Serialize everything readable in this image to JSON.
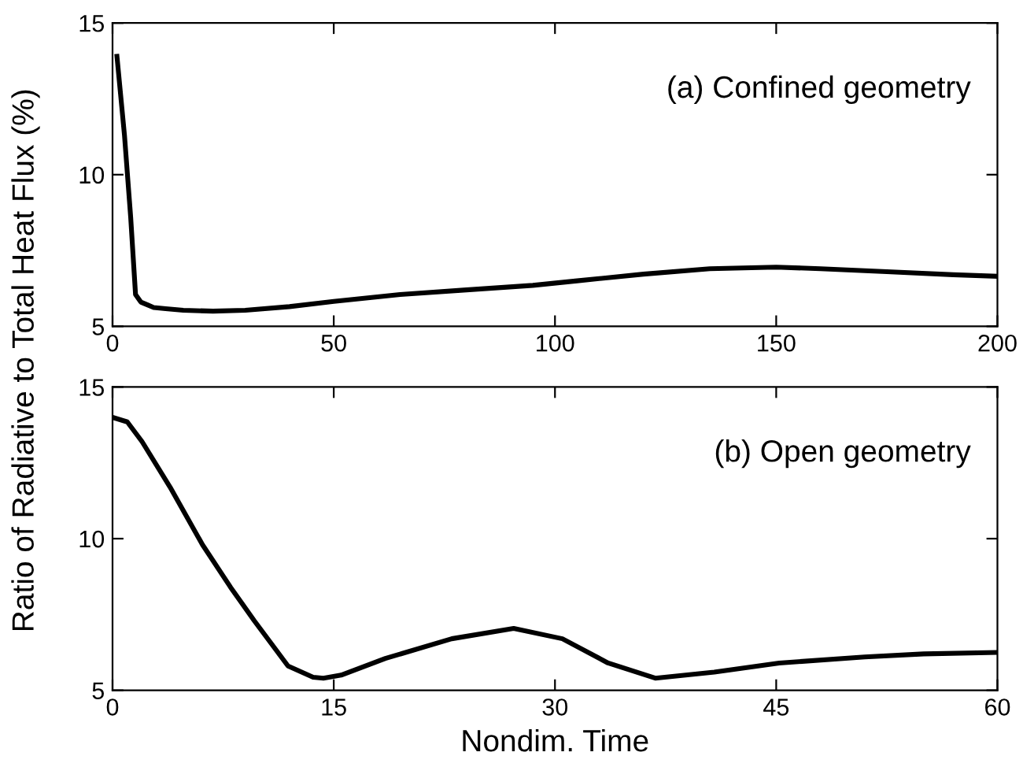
{
  "chart_data": [
    {
      "type": "line",
      "ylabel": "Ratio of Radiative to Total Heat Flux (%)",
      "annotations": [
        "(a) Confined geometry"
      ],
      "xlim": [
        0,
        200
      ],
      "ylim": [
        5,
        15
      ],
      "xticks": [
        0,
        50,
        100,
        150,
        200
      ],
      "yticks": [
        5,
        10,
        15
      ],
      "grid": false,
      "legend": false,
      "series": [
        {
          "color": "#000000",
          "x": [
            1,
            2.7,
            4.1,
            5.2,
            6.4,
            8,
            9.3,
            12,
            16,
            22.7,
            30,
            40,
            50,
            65,
            80,
            95,
            105,
            120,
            135,
            150,
            160,
            175,
            190,
            200
          ],
          "values": [
            13.9,
            11.3,
            8.6,
            6.05,
            5.8,
            5.7,
            5.62,
            5.58,
            5.53,
            5.5,
            5.53,
            5.65,
            5.82,
            6.05,
            6.2,
            6.35,
            6.5,
            6.72,
            6.9,
            6.95,
            6.9,
            6.8,
            6.7,
            6.65
          ]
        }
      ]
    },
    {
      "type": "line",
      "xlabel": "Nondim. Time",
      "annotations": [
        "(b) Open geometry"
      ],
      "xlim": [
        0,
        60
      ],
      "ylim": [
        5,
        15
      ],
      "xticks": [
        0,
        15,
        30,
        45,
        60
      ],
      "yticks": [
        5,
        10,
        15
      ],
      "grid": false,
      "legend": false,
      "series": [
        {
          "color": "#000000",
          "x": [
            0,
            1,
            2,
            3.9,
            6.1,
            8,
            9.6,
            11.9,
            13.6,
            14.3,
            15.5,
            18.5,
            23,
            27.2,
            30.5,
            33.6,
            36.8,
            40.8,
            45.2,
            51,
            55,
            60
          ],
          "values": [
            14.0,
            13.85,
            13.2,
            11.7,
            9.8,
            8.4,
            7.3,
            5.8,
            5.43,
            5.4,
            5.5,
            6.05,
            6.7,
            7.04,
            6.7,
            5.9,
            5.4,
            5.6,
            5.9,
            6.1,
            6.2,
            6.25
          ]
        }
      ]
    }
  ]
}
